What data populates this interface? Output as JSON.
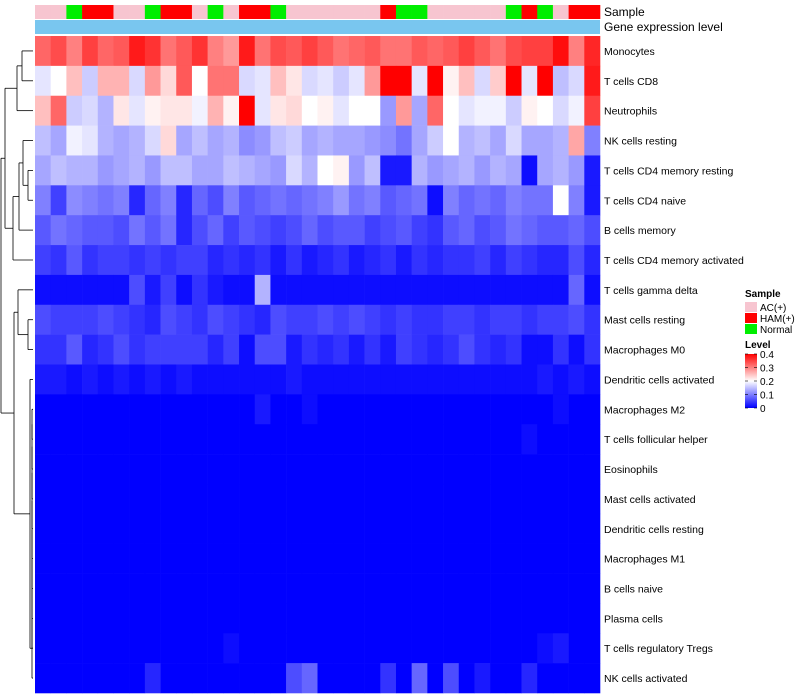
{
  "chart_data": {
    "type": "heatmap",
    "title": "",
    "annotations": [
      {
        "name": "Sample",
        "kind": "categorical"
      },
      {
        "name": "Gene expression level",
        "kind": "continuous",
        "color": "#79c6ef"
      }
    ],
    "sample_groups": [
      "AC(+)",
      "AC(+)",
      "Normal",
      "HAM(+)",
      "HAM(+)",
      "AC(+)",
      "AC(+)",
      "Normal",
      "HAM(+)",
      "HAM(+)",
      "AC(+)",
      "Normal",
      "AC(+)",
      "HAM(+)",
      "HAM(+)",
      "Normal",
      "AC(+)",
      "AC(+)",
      "AC(+)",
      "AC(+)",
      "AC(+)",
      "AC(+)",
      "HAM(+)",
      "Normal",
      "Normal",
      "AC(+)",
      "AC(+)",
      "AC(+)",
      "AC(+)",
      "AC(+)",
      "Normal",
      "HAM(+)",
      "Normal",
      "AC(+)",
      "HAM(+)",
      "HAM(+)"
    ],
    "rows": [
      "Monocytes",
      "T cells CD8",
      "Neutrophils",
      "NK cells resting",
      "T cells CD4 memory resting",
      "T cells CD4 naive",
      "B cells memory",
      "T cells CD4 memory activated",
      "T cells gamma delta",
      "Mast cells resting",
      "Macrophages M0",
      "Dendritic cells activated",
      "Macrophages M2",
      "T cells follicular helper",
      "Eosinophils",
      "Mast cells activated",
      "Dendritic cells resting",
      "Macrophages M1",
      "B cells naive",
      "Plasma cells",
      "T cells regulatory  Tregs",
      "NK cells activated"
    ],
    "values": [
      [
        0.32,
        0.34,
        0.3,
        0.35,
        0.32,
        0.33,
        0.38,
        0.36,
        0.31,
        0.33,
        0.36,
        0.3,
        0.28,
        0.38,
        0.31,
        0.34,
        0.33,
        0.35,
        0.33,
        0.31,
        0.32,
        0.33,
        0.31,
        0.31,
        0.33,
        0.32,
        0.33,
        0.35,
        0.33,
        0.31,
        0.34,
        0.35,
        0.35,
        0.39,
        0.3,
        0.37
      ],
      [
        0.18,
        0.2,
        0.25,
        0.16,
        0.26,
        0.26,
        0.17,
        0.28,
        0.23,
        0.33,
        0.2,
        0.31,
        0.31,
        0.17,
        0.18,
        0.25,
        0.22,
        0.17,
        0.18,
        0.16,
        0.18,
        0.28,
        0.4,
        0.4,
        0.18,
        0.4,
        0.21,
        0.25,
        0.17,
        0.24,
        0.4,
        0.18,
        0.4,
        0.15,
        0.17,
        0.38
      ],
      [
        0.25,
        0.32,
        0.16,
        0.17,
        0.14,
        0.22,
        0.18,
        0.21,
        0.22,
        0.22,
        0.19,
        0.26,
        0.21,
        0.4,
        0.18,
        0.22,
        0.23,
        0.2,
        0.21,
        0.18,
        0.2,
        0.2,
        0.12,
        0.28,
        0.13,
        0.32,
        0.2,
        0.18,
        0.19,
        0.19,
        0.16,
        0.21,
        0.2,
        0.17,
        0.19,
        0.35
      ],
      [
        0.15,
        0.13,
        0.19,
        0.18,
        0.14,
        0.13,
        0.14,
        0.17,
        0.23,
        0.13,
        0.15,
        0.13,
        0.14,
        0.11,
        0.12,
        0.15,
        0.16,
        0.13,
        0.14,
        0.13,
        0.13,
        0.12,
        0.11,
        0.09,
        0.13,
        0.16,
        0.2,
        0.14,
        0.15,
        0.13,
        0.17,
        0.13,
        0.13,
        0.14,
        0.27,
        0.1
      ],
      [
        0.13,
        0.15,
        0.14,
        0.14,
        0.12,
        0.13,
        0.14,
        0.12,
        0.15,
        0.15,
        0.13,
        0.13,
        0.15,
        0.14,
        0.13,
        0.12,
        0.17,
        0.14,
        0.2,
        0.21,
        0.12,
        0.15,
        0.02,
        0.02,
        0.14,
        0.12,
        0.13,
        0.14,
        0.12,
        0.14,
        0.13,
        0.01,
        0.13,
        0.14,
        0.12,
        0.02
      ],
      [
        0.1,
        0.05,
        0.11,
        0.1,
        0.09,
        0.1,
        0.03,
        0.08,
        0.1,
        0.03,
        0.08,
        0.06,
        0.1,
        0.07,
        0.08,
        0.09,
        0.08,
        0.09,
        0.1,
        0.12,
        0.09,
        0.1,
        0.07,
        0.08,
        0.09,
        0.01,
        0.1,
        0.08,
        0.09,
        0.08,
        0.1,
        0.09,
        0.09,
        0.2,
        0.1,
        0.02
      ],
      [
        0.07,
        0.09,
        0.08,
        0.07,
        0.07,
        0.06,
        0.09,
        0.07,
        0.09,
        0.03,
        0.06,
        0.08,
        0.05,
        0.07,
        0.06,
        0.05,
        0.06,
        0.08,
        0.06,
        0.07,
        0.07,
        0.05,
        0.06,
        0.07,
        0.05,
        0.04,
        0.07,
        0.08,
        0.06,
        0.07,
        0.09,
        0.08,
        0.07,
        0.07,
        0.08,
        0.06
      ],
      [
        0.05,
        0.04,
        0.07,
        0.04,
        0.05,
        0.05,
        0.04,
        0.05,
        0.04,
        0.05,
        0.05,
        0.03,
        0.04,
        0.03,
        0.04,
        0.02,
        0.04,
        0.02,
        0.03,
        0.04,
        0.02,
        0.03,
        0.04,
        0.02,
        0.04,
        0.03,
        0.04,
        0.04,
        0.05,
        0.03,
        0.05,
        0.04,
        0.03,
        0.03,
        0.06,
        0.03
      ],
      [
        0.01,
        0.01,
        0.01,
        0.01,
        0.01,
        0.01,
        0.06,
        0.02,
        0.05,
        0.01,
        0.04,
        0.02,
        0.01,
        0.01,
        0.14,
        0.01,
        0.01,
        0.01,
        0.01,
        0.01,
        0.01,
        0.01,
        0.01,
        0.01,
        0.01,
        0.01,
        0.01,
        0.01,
        0.01,
        0.01,
        0.01,
        0.01,
        0.01,
        0.01,
        0.08,
        0.01
      ],
      [
        0.06,
        0.05,
        0.05,
        0.05,
        0.06,
        0.05,
        0.04,
        0.03,
        0.06,
        0.05,
        0.04,
        0.06,
        0.05,
        0.04,
        0.03,
        0.06,
        0.05,
        0.05,
        0.06,
        0.05,
        0.06,
        0.05,
        0.04,
        0.05,
        0.04,
        0.04,
        0.05,
        0.05,
        0.04,
        0.05,
        0.05,
        0.04,
        0.05,
        0.05,
        0.06,
        0.04
      ],
      [
        0.04,
        0.04,
        0.07,
        0.03,
        0.04,
        0.06,
        0.04,
        0.05,
        0.05,
        0.05,
        0.05,
        0.03,
        0.05,
        0.01,
        0.06,
        0.06,
        0.02,
        0.04,
        0.03,
        0.04,
        0.02,
        0.04,
        0.02,
        0.05,
        0.04,
        0.03,
        0.04,
        0.06,
        0.04,
        0.03,
        0.04,
        0.01,
        0.01,
        0.04,
        0.01,
        0.04
      ],
      [
        0.02,
        0.02,
        0.01,
        0.02,
        0.01,
        0.02,
        0.01,
        0.02,
        0.01,
        0.02,
        0.01,
        0.01,
        0.01,
        0.01,
        0.01,
        0.01,
        0.02,
        0.01,
        0.01,
        0.01,
        0.01,
        0.01,
        0.01,
        0.01,
        0.01,
        0.01,
        0.01,
        0.01,
        0.01,
        0.01,
        0.01,
        0.01,
        0.02,
        0.01,
        0.02,
        0.01
      ],
      [
        0.0,
        0.0,
        0.0,
        0.0,
        0.0,
        0.0,
        0.0,
        0.0,
        0.0,
        0.0,
        0.0,
        0.0,
        0.0,
        0.0,
        0.02,
        0.0,
        0.0,
        0.01,
        0.0,
        0.0,
        0.0,
        0.0,
        0.0,
        0.0,
        0.0,
        0.0,
        0.0,
        0.0,
        0.0,
        0.0,
        0.0,
        0.0,
        0.0,
        0.01,
        0.0,
        0.0
      ],
      [
        0.0,
        0.0,
        0.0,
        0.0,
        0.0,
        0.0,
        0.0,
        0.0,
        0.0,
        0.0,
        0.0,
        0.0,
        0.0,
        0.0,
        0.0,
        0.0,
        0.0,
        0.0,
        0.0,
        0.0,
        0.0,
        0.0,
        0.0,
        0.0,
        0.0,
        0.0,
        0.0,
        0.0,
        0.0,
        0.0,
        0.0,
        0.01,
        0.0,
        0.0,
        0.0,
        0.0
      ],
      [
        0.0,
        0.0,
        0.0,
        0.0,
        0.0,
        0.0,
        0.0,
        0.0,
        0.0,
        0.0,
        0.0,
        0.0,
        0.0,
        0.0,
        0.0,
        0.0,
        0.0,
        0.0,
        0.0,
        0.0,
        0.0,
        0.0,
        0.0,
        0.0,
        0.0,
        0.0,
        0.0,
        0.0,
        0.0,
        0.0,
        0.0,
        0.0,
        0.0,
        0.0,
        0.0,
        0.0
      ],
      [
        0.0,
        0.0,
        0.0,
        0.0,
        0.0,
        0.0,
        0.0,
        0.0,
        0.0,
        0.0,
        0.0,
        0.0,
        0.0,
        0.0,
        0.0,
        0.0,
        0.0,
        0.0,
        0.0,
        0.0,
        0.0,
        0.0,
        0.0,
        0.0,
        0.0,
        0.0,
        0.0,
        0.0,
        0.0,
        0.0,
        0.0,
        0.0,
        0.0,
        0.0,
        0.0,
        0.0
      ],
      [
        0.0,
        0.0,
        0.0,
        0.0,
        0.0,
        0.0,
        0.0,
        0.0,
        0.0,
        0.0,
        0.0,
        0.0,
        0.0,
        0.0,
        0.0,
        0.0,
        0.0,
        0.0,
        0.0,
        0.0,
        0.0,
        0.0,
        0.0,
        0.0,
        0.0,
        0.0,
        0.0,
        0.0,
        0.0,
        0.0,
        0.0,
        0.0,
        0.0,
        0.0,
        0.0,
        0.0
      ],
      [
        0.0,
        0.0,
        0.0,
        0.0,
        0.0,
        0.0,
        0.0,
        0.0,
        0.0,
        0.0,
        0.0,
        0.0,
        0.0,
        0.0,
        0.0,
        0.0,
        0.0,
        0.0,
        0.0,
        0.0,
        0.0,
        0.0,
        0.0,
        0.0,
        0.0,
        0.0,
        0.0,
        0.0,
        0.0,
        0.0,
        0.0,
        0.0,
        0.0,
        0.0,
        0.0,
        0.0
      ],
      [
        0.0,
        0.0,
        0.0,
        0.0,
        0.0,
        0.0,
        0.0,
        0.0,
        0.0,
        0.0,
        0.0,
        0.0,
        0.0,
        0.0,
        0.0,
        0.0,
        0.0,
        0.0,
        0.0,
        0.0,
        0.0,
        0.0,
        0.0,
        0.0,
        0.0,
        0.0,
        0.0,
        0.0,
        0.0,
        0.0,
        0.0,
        0.0,
        0.0,
        0.0,
        0.0,
        0.0
      ],
      [
        0.0,
        0.0,
        0.0,
        0.0,
        0.0,
        0.0,
        0.0,
        0.0,
        0.0,
        0.0,
        0.0,
        0.0,
        0.0,
        0.0,
        0.0,
        0.0,
        0.0,
        0.0,
        0.0,
        0.0,
        0.0,
        0.0,
        0.0,
        0.0,
        0.0,
        0.0,
        0.0,
        0.0,
        0.0,
        0.0,
        0.0,
        0.0,
        0.0,
        0.0,
        0.0,
        0.0
      ],
      [
        0.0,
        0.0,
        0.0,
        0.0,
        0.0,
        0.0,
        0.0,
        0.0,
        0.0,
        0.0,
        0.0,
        0.0,
        0.01,
        0.0,
        0.0,
        0.0,
        0.0,
        0.0,
        0.0,
        0.0,
        0.0,
        0.0,
        0.0,
        0.0,
        0.0,
        0.0,
        0.0,
        0.0,
        0.0,
        0.0,
        0.0,
        0.0,
        0.01,
        0.02,
        0.0,
        0.0
      ],
      [
        0.0,
        0.0,
        0.0,
        0.0,
        0.0,
        0.0,
        0.0,
        0.03,
        0.0,
        0.0,
        0.0,
        0.0,
        0.0,
        0.0,
        0.0,
        0.0,
        0.06,
        0.08,
        0.0,
        0.0,
        0.0,
        0.0,
        0.04,
        0.0,
        0.08,
        0.0,
        0.06,
        0.0,
        0.02,
        0.0,
        0.0,
        0.03,
        0.0,
        0.0,
        0.0,
        0.0
      ]
    ],
    "row_dendrogram": "hierarchical clustering of rows",
    "legend": {
      "sample_title": "Sample",
      "sample_entries": [
        {
          "label": "AC(+)",
          "color": "#f7c5d0"
        },
        {
          "label": "HAM(+)",
          "color": "#ff0000"
        },
        {
          "label": "Normal",
          "color": "#00ee00"
        }
      ],
      "level_title": "Level",
      "level_ticks": [
        0.4,
        0.3,
        0.2,
        0.1,
        0
      ],
      "level_tick_labels": [
        "0.4",
        "0.3",
        "0.2",
        "0.1",
        "0"
      ],
      "scale": {
        "min": 0,
        "mid": 0.2,
        "max": 0.4,
        "low_color": "#0000ff",
        "mid_color": "#ffffff",
        "high_color": "#ff0000"
      }
    }
  }
}
